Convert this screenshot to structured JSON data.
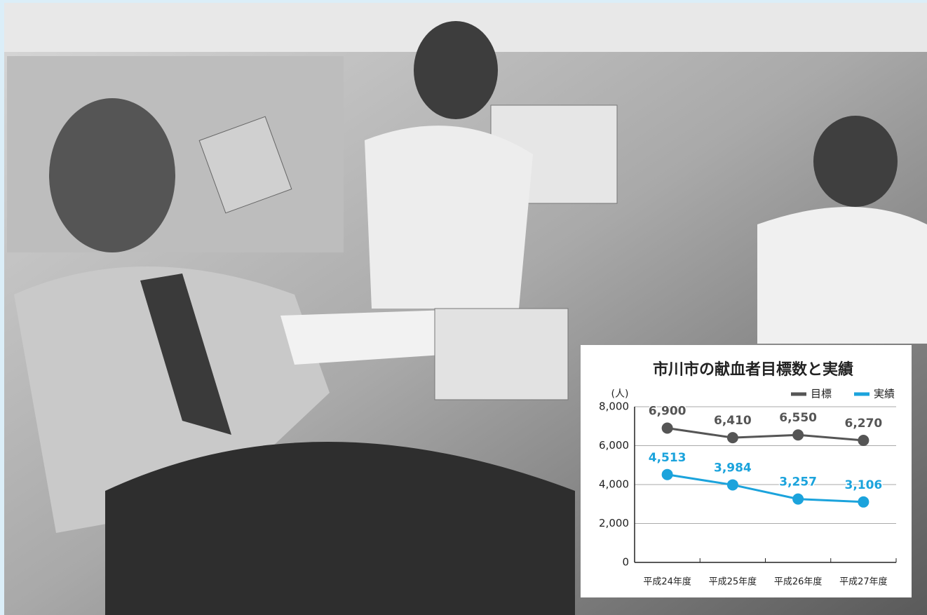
{
  "chart_data": {
    "type": "line",
    "title": "市川市の献血者目標数と実績",
    "y_unit": "(人)",
    "categories": [
      "平成24年度",
      "平成25年度",
      "平成26年度",
      "平成27年度"
    ],
    "series": [
      {
        "name": "目標",
        "color": "#555555",
        "values": [
          6900,
          6410,
          6550,
          6270
        ],
        "value_labels": [
          "6,900",
          "6,410",
          "6,550",
          "6,270"
        ]
      },
      {
        "name": "実績",
        "color": "#1ba3dc",
        "values": [
          4513,
          3984,
          3257,
          3106
        ],
        "value_labels": [
          "4,513",
          "3,984",
          "3,257",
          "3,106"
        ]
      }
    ],
    "ylim": [
      0,
      8000
    ],
    "yticks": [
      0,
      {
        "value": 2000,
        "label": "2,000"
      },
      {
        "value": 4000,
        "label": "4,000"
      },
      {
        "value": 6000,
        "label": "6,000"
      },
      {
        "value": 8000,
        "label": "8,000"
      }
    ],
    "grid": true,
    "legend": "top-right"
  }
}
